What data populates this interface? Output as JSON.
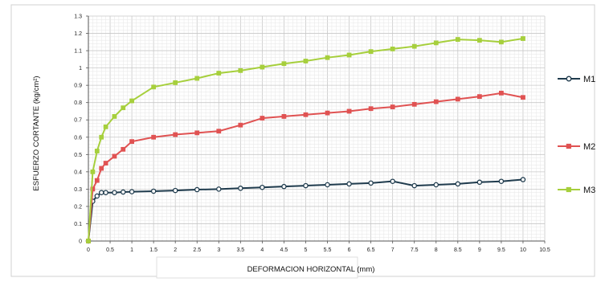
{
  "chart_data": {
    "type": "line",
    "xlabel": "DEFORMACION HORIZONTAL (mm)",
    "ylabel": "ESFUERZO CORTANTE (kg/cm²)",
    "xlim": [
      0,
      10.5
    ],
    "ylim": [
      0,
      1.3
    ],
    "xticks": [
      "0",
      "0.5",
      "1",
      "1.5",
      "2",
      "2.5",
      "3",
      "3.5",
      "4",
      "4.5",
      "5",
      "5.5",
      "6",
      "6.5",
      "7",
      "7.5",
      "8",
      "8.5",
      "9",
      "9.5",
      "10",
      "10.5"
    ],
    "yticks": [
      "0",
      "0.1",
      "0.2",
      "0.3",
      "0.4",
      "0.5",
      "0.6",
      "0.7",
      "0.8",
      "0.9",
      "1",
      "1.1",
      "1.2",
      "1.3"
    ],
    "grid": true,
    "legend_position": "right",
    "series": [
      {
        "name": "M1",
        "color": "#1f3b4d",
        "marker_fill": "#ffffff",
        "points": [
          [
            0,
            0
          ],
          [
            0.1,
            0.23
          ],
          [
            0.2,
            0.26
          ],
          [
            0.3,
            0.28
          ],
          [
            0.4,
            0.28
          ],
          [
            0.6,
            0.28
          ],
          [
            0.8,
            0.283
          ],
          [
            1,
            0.285
          ],
          [
            1.5,
            0.288
          ],
          [
            2,
            0.292
          ],
          [
            2.5,
            0.297
          ],
          [
            3,
            0.3
          ],
          [
            3.5,
            0.305
          ],
          [
            4,
            0.31
          ],
          [
            4.5,
            0.315
          ],
          [
            5,
            0.32
          ],
          [
            5.5,
            0.325
          ],
          [
            6,
            0.33
          ],
          [
            6.5,
            0.335
          ],
          [
            7,
            0.345
          ],
          [
            7.5,
            0.32
          ],
          [
            8,
            0.325
          ],
          [
            8.5,
            0.33
          ],
          [
            9,
            0.34
          ],
          [
            9.5,
            0.345
          ],
          [
            10,
            0.355
          ]
        ]
      },
      {
        "name": "M2",
        "color": "#e05252",
        "marker_fill": "#e05252",
        "points": [
          [
            0,
            0
          ],
          [
            0.1,
            0.3
          ],
          [
            0.2,
            0.35
          ],
          [
            0.3,
            0.42
          ],
          [
            0.4,
            0.45
          ],
          [
            0.6,
            0.49
          ],
          [
            0.8,
            0.53
          ],
          [
            1,
            0.575
          ],
          [
            1.5,
            0.6
          ],
          [
            2,
            0.615
          ],
          [
            2.5,
            0.625
          ],
          [
            3,
            0.635
          ],
          [
            3.5,
            0.67
          ],
          [
            4,
            0.71
          ],
          [
            4.5,
            0.72
          ],
          [
            5,
            0.73
          ],
          [
            5.5,
            0.74
          ],
          [
            6,
            0.75
          ],
          [
            6.5,
            0.765
          ],
          [
            7,
            0.775
          ],
          [
            7.5,
            0.79
          ],
          [
            8,
            0.805
          ],
          [
            8.5,
            0.82
          ],
          [
            9,
            0.835
          ],
          [
            9.5,
            0.855
          ],
          [
            10,
            0.83
          ]
        ]
      },
      {
        "name": "M3",
        "color": "#a6cf3c",
        "marker_fill": "#a6cf3c",
        "points": [
          [
            0,
            0
          ],
          [
            0.1,
            0.4
          ],
          [
            0.2,
            0.52
          ],
          [
            0.3,
            0.6
          ],
          [
            0.4,
            0.66
          ],
          [
            0.6,
            0.72
          ],
          [
            0.8,
            0.77
          ],
          [
            1,
            0.81
          ],
          [
            1.5,
            0.89
          ],
          [
            2,
            0.915
          ],
          [
            2.5,
            0.94
          ],
          [
            3,
            0.97
          ],
          [
            3.5,
            0.985
          ],
          [
            4,
            1.005
          ],
          [
            4.5,
            1.025
          ],
          [
            5,
            1.04
          ],
          [
            5.5,
            1.06
          ],
          [
            6,
            1.075
          ],
          [
            6.5,
            1.095
          ],
          [
            7,
            1.11
          ],
          [
            7.5,
            1.125
          ],
          [
            8,
            1.145
          ],
          [
            8.5,
            1.165
          ],
          [
            9,
            1.16
          ],
          [
            9.5,
            1.15
          ],
          [
            10,
            1.17
          ]
        ]
      }
    ]
  }
}
